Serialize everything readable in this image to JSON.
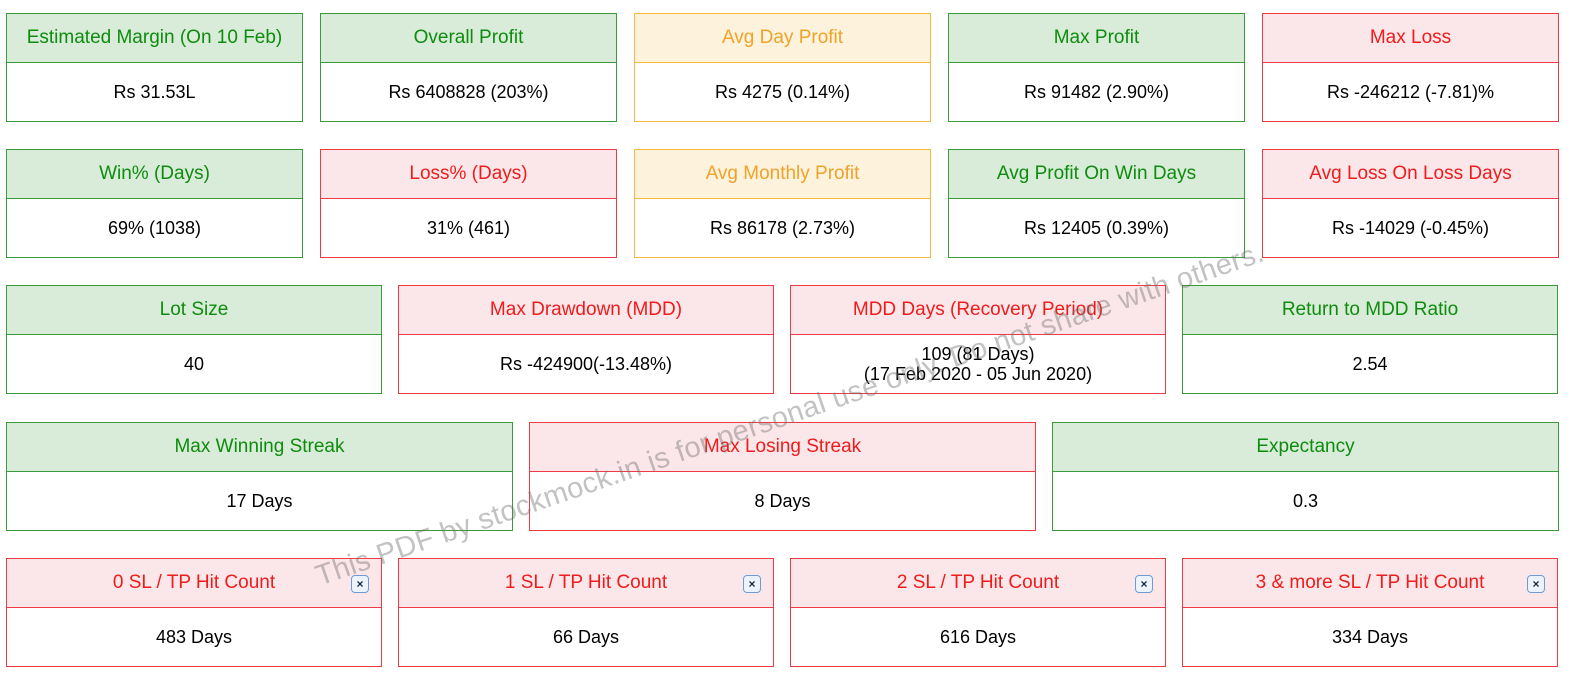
{
  "colors": {
    "green": "#0e8c0e",
    "red": "#ee1c1c",
    "orange": "#f0a22a"
  },
  "row1": [
    {
      "title": "Estimated Margin (On 10 Feb)",
      "value": "Rs 31.53L",
      "tone": "green"
    },
    {
      "title": "Overall Profit",
      "value": "Rs 6408828 (203%)",
      "tone": "green"
    },
    {
      "title": "Avg Day Profit",
      "value": "Rs 4275 (0.14%)",
      "tone": "orange"
    },
    {
      "title": "Max Profit",
      "value": "Rs 91482 (2.90%)",
      "tone": "green"
    },
    {
      "title": "Max Loss",
      "value": "Rs -246212 (-7.81)%",
      "tone": "red"
    }
  ],
  "row2": [
    {
      "title": "Win% (Days)",
      "value": "69% (1038)",
      "tone": "green"
    },
    {
      "title": "Loss% (Days)",
      "value": "31% (461)",
      "tone": "red"
    },
    {
      "title": "Avg Monthly Profit",
      "value": "Rs 86178 (2.73%)",
      "tone": "orange"
    },
    {
      "title": "Avg Profit On Win Days",
      "value": "Rs 12405 (0.39%)",
      "tone": "green"
    },
    {
      "title": "Avg Loss On Loss Days",
      "value": "Rs -14029 (-0.45%)",
      "tone": "red"
    }
  ],
  "row3": [
    {
      "title": "Lot Size",
      "value": "40",
      "tone": "green"
    },
    {
      "title": "Max Drawdown (MDD)",
      "value": "Rs -424900(-13.48%)",
      "tone": "red"
    },
    {
      "title": "MDD Days (Recovery Period)",
      "value": "109 (81 Days)",
      "value2": "(17 Feb 2020 - 05 Jun 2020)",
      "tone": "red"
    },
    {
      "title": "Return to MDD Ratio",
      "value": "2.54",
      "tone": "green"
    }
  ],
  "row4": [
    {
      "title": "Max Winning Streak",
      "value": "17 Days",
      "tone": "green"
    },
    {
      "title": "Max Losing Streak",
      "value": "8 Days",
      "tone": "red"
    },
    {
      "title": "Expectancy",
      "value": "0.3",
      "tone": "green"
    }
  ],
  "row5": [
    {
      "title": "0 SL / TP Hit Count",
      "value": "483 Days",
      "tone": "red"
    },
    {
      "title": "1 SL / TP Hit Count",
      "value": "66 Days",
      "tone": "red"
    },
    {
      "title": "2 SL / TP Hit Count",
      "value": "616 Days",
      "tone": "red"
    },
    {
      "title": "3 & more SL / TP Hit Count",
      "value": "334 Days",
      "tone": "red"
    }
  ],
  "close_glyph": "×",
  "watermark": "This PDF by stockmock.in is for personal use only. Do not share with others."
}
